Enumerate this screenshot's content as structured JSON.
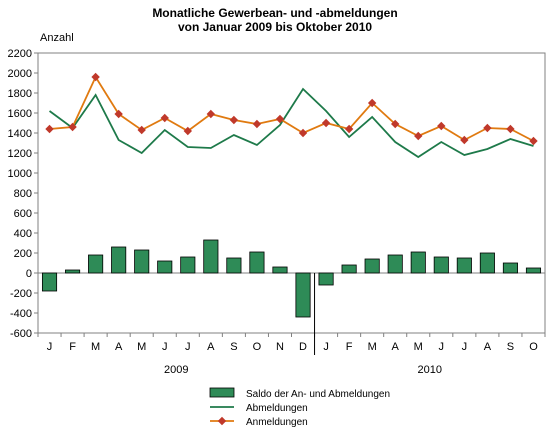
{
  "chart_data": {
    "type": "bar+line",
    "title_lines": [
      "Monatliche Gewerbean- und -abmeldungen",
      "von Januar 2009 bis Oktober 2010"
    ],
    "ylabel": "Anzahl",
    "ylim": [
      -600,
      2200
    ],
    "yticks": [
      "2200",
      "2000",
      "1800",
      "1600",
      "1400",
      "1200",
      "1000",
      "800",
      "600",
      "400",
      "200",
      "0",
      "-200",
      "-400",
      "-600"
    ],
    "ytick_values": [
      2200,
      2000,
      1800,
      1600,
      1400,
      1200,
      1000,
      800,
      600,
      400,
      200,
      0,
      -200,
      -400,
      -600
    ],
    "categories": [
      "J",
      "F",
      "M",
      "A",
      "M",
      "J",
      "J",
      "A",
      "S",
      "O",
      "N",
      "D",
      "J",
      "F",
      "M",
      "A",
      "M",
      "J",
      "J",
      "A",
      "S",
      "O"
    ],
    "year_labels": [
      {
        "label": "2009",
        "start_index": 0,
        "end_index": 11
      },
      {
        "label": "2010",
        "start_index": 12,
        "end_index": 21
      }
    ],
    "grid": false,
    "legend_position": "bottom-center",
    "series": [
      {
        "name": "Saldo der An- und Abmeldungen",
        "kind": "bar",
        "color": "#2e8b57",
        "values": [
          -180,
          30,
          180,
          260,
          230,
          120,
          160,
          330,
          150,
          210,
          60,
          -440,
          -120,
          80,
          140,
          180,
          210,
          160,
          150,
          200,
          100,
          50
        ]
      },
      {
        "name": "Abmeldungen",
        "kind": "line",
        "color": "#1e7a4a",
        "values": [
          1620,
          1450,
          1780,
          1330,
          1200,
          1430,
          1260,
          1250,
          1380,
          1280,
          1480,
          1840,
          1620,
          1360,
          1560,
          1310,
          1160,
          1310,
          1180,
          1240,
          1340,
          1270
        ]
      },
      {
        "name": "Anmeldungen",
        "kind": "line-marker",
        "color": "#e07a10",
        "marker_color": "#c0392b",
        "values": [
          1440,
          1460,
          1960,
          1590,
          1430,
          1550,
          1420,
          1590,
          1530,
          1490,
          1540,
          1400,
          1500,
          1440,
          1700,
          1490,
          1370,
          1470,
          1330,
          1450,
          1440,
          1320
        ]
      }
    ]
  }
}
